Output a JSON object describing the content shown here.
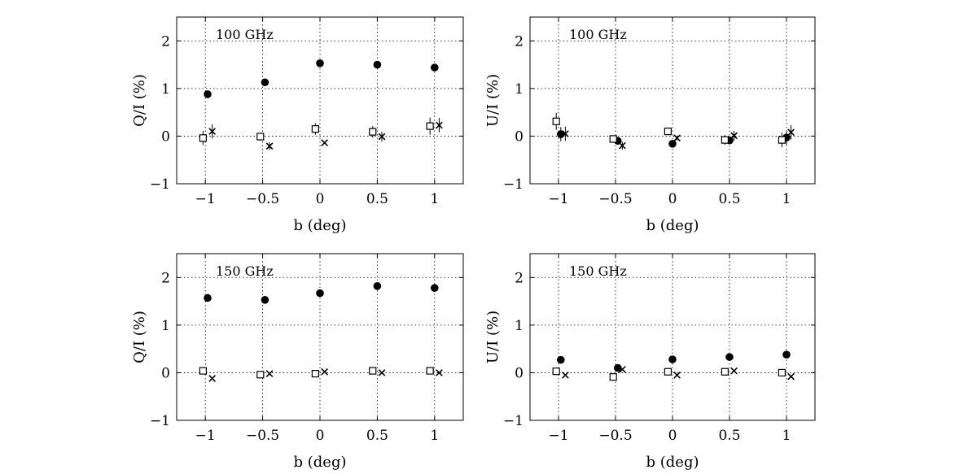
{
  "chart_data": [
    {
      "type": "scatter",
      "panel_label": "100 GHz",
      "xlabel": "b (deg)",
      "ylabel": "Q/I (%)",
      "xlim": [
        -1.25,
        1.25
      ],
      "ylim": [
        -1,
        2.5
      ],
      "xticks": [
        -1,
        -0.5,
        0,
        0.5,
        1
      ],
      "xtick_labels": [
        "−1",
        "−0.5",
        "0",
        "0.5",
        "1"
      ],
      "yticks": [
        -1,
        0,
        1,
        2
      ],
      "ytick_labels": [
        "−1",
        "0",
        "1",
        "2"
      ],
      "grid": true,
      "series": [
        {
          "marker": "circle",
          "x": [
            -0.98,
            -0.48,
            0.0,
            0.5,
            1.0
          ],
          "y": [
            0.88,
            1.13,
            1.53,
            1.5,
            1.44
          ],
          "err": [
            0,
            0,
            0,
            0,
            0
          ]
        },
        {
          "marker": "square",
          "x": [
            -1.02,
            -0.52,
            -0.04,
            0.46,
            0.96
          ],
          "y": [
            -0.04,
            -0.01,
            0.15,
            0.09,
            0.21
          ],
          "err": [
            0.15,
            0.08,
            0.12,
            0.12,
            0.18
          ]
        },
        {
          "marker": "cross",
          "x": [
            -0.94,
            -0.44,
            0.04,
            0.54,
            1.04
          ],
          "y": [
            0.1,
            -0.21,
            -0.14,
            -0.01,
            0.23
          ],
          "err": [
            0.15,
            0.08,
            0.0,
            0.1,
            0.15
          ]
        }
      ]
    },
    {
      "type": "scatter",
      "panel_label": "100 GHz",
      "xlabel": "b (deg)",
      "ylabel": "U/I (%)",
      "xlim": [
        -1.25,
        1.25
      ],
      "ylim": [
        -1,
        2.5
      ],
      "xticks": [
        -1,
        -0.5,
        0,
        0.5,
        1
      ],
      "xtick_labels": [
        "−1",
        "−0.5",
        "0",
        "0.5",
        "1"
      ],
      "yticks": [
        -1,
        0,
        1,
        2
      ],
      "ytick_labels": [
        "−1",
        "0",
        "1",
        "2"
      ],
      "grid": true,
      "series": [
        {
          "marker": "circle",
          "x": [
            -0.98,
            -0.48,
            0.0,
            0.5,
            1.0
          ],
          "y": [
            0.04,
            -0.1,
            -0.16,
            -0.09,
            -0.03
          ],
          "err": [
            0.15,
            0.06,
            0.05,
            0.06,
            0.15
          ]
        },
        {
          "marker": "square",
          "x": [
            -1.02,
            -0.52,
            -0.04,
            0.46,
            0.96
          ],
          "y": [
            0.31,
            -0.06,
            0.1,
            -0.08,
            -0.08
          ],
          "err": [
            0.18,
            0.08,
            0.08,
            0.1,
            0.15
          ]
        },
        {
          "marker": "cross",
          "x": [
            -0.94,
            -0.44,
            0.04,
            0.54,
            1.04
          ],
          "y": [
            0.05,
            -0.2,
            -0.04,
            0.01,
            0.08
          ],
          "err": [
            0.15,
            0.08,
            0.05,
            0.1,
            0.15
          ]
        }
      ]
    },
    {
      "type": "scatter",
      "panel_label": "150 GHz",
      "xlabel": "b (deg)",
      "ylabel": "Q/I (%)",
      "xlim": [
        -1.25,
        1.25
      ],
      "ylim": [
        -1,
        2.5
      ],
      "xticks": [
        -1,
        -0.5,
        0,
        0.5,
        1
      ],
      "xtick_labels": [
        "−1",
        "−0.5",
        "0",
        "0.5",
        "1"
      ],
      "yticks": [
        -1,
        0,
        1,
        2
      ],
      "ytick_labels": [
        "−1",
        "0",
        "1",
        "2"
      ],
      "grid": true,
      "series": [
        {
          "marker": "circle",
          "x": [
            -0.98,
            -0.48,
            0.0,
            0.5,
            1.0
          ],
          "y": [
            1.57,
            1.53,
            1.67,
            1.82,
            1.78
          ],
          "err": [
            0,
            0,
            0,
            0,
            0
          ]
        },
        {
          "marker": "square",
          "x": [
            -1.02,
            -0.52,
            -0.04,
            0.46,
            0.96
          ],
          "y": [
            0.04,
            -0.04,
            -0.02,
            0.04,
            0.04
          ],
          "err": [
            0,
            0,
            0,
            0,
            0
          ]
        },
        {
          "marker": "cross",
          "x": [
            -0.94,
            -0.44,
            0.04,
            0.54,
            1.04
          ],
          "y": [
            -0.12,
            -0.02,
            0.02,
            0.0,
            0.0
          ],
          "err": [
            0,
            0,
            0,
            0,
            0
          ]
        }
      ]
    },
    {
      "type": "scatter",
      "panel_label": "150 GHz",
      "xlabel": "b (deg)",
      "ylabel": "U/I (%)",
      "xlim": [
        -1.25,
        1.25
      ],
      "ylim": [
        -1,
        2.5
      ],
      "xticks": [
        -1,
        -0.5,
        0,
        0.5,
        1
      ],
      "xtick_labels": [
        "−1",
        "−0.5",
        "0",
        "0.5",
        "1"
      ],
      "yticks": [
        -1,
        0,
        1,
        2
      ],
      "ytick_labels": [
        "−1",
        "0",
        "1",
        "2"
      ],
      "grid": true,
      "series": [
        {
          "marker": "circle",
          "x": [
            -0.98,
            -0.48,
            0.0,
            0.5,
            1.0
          ],
          "y": [
            0.27,
            0.1,
            0.28,
            0.33,
            0.38
          ],
          "err": [
            0,
            0,
            0,
            0,
            0
          ]
        },
        {
          "marker": "square",
          "x": [
            -1.02,
            -0.52,
            -0.04,
            0.46,
            0.96
          ],
          "y": [
            0.03,
            -0.09,
            0.02,
            0.02,
            0.0
          ],
          "err": [
            0,
            0,
            0,
            0,
            0
          ]
        },
        {
          "marker": "cross",
          "x": [
            -0.94,
            -0.44,
            0.04,
            0.54,
            1.04
          ],
          "y": [
            -0.05,
            0.07,
            -0.05,
            0.04,
            -0.08
          ],
          "err": [
            0,
            0,
            0,
            0,
            0
          ]
        }
      ]
    }
  ]
}
